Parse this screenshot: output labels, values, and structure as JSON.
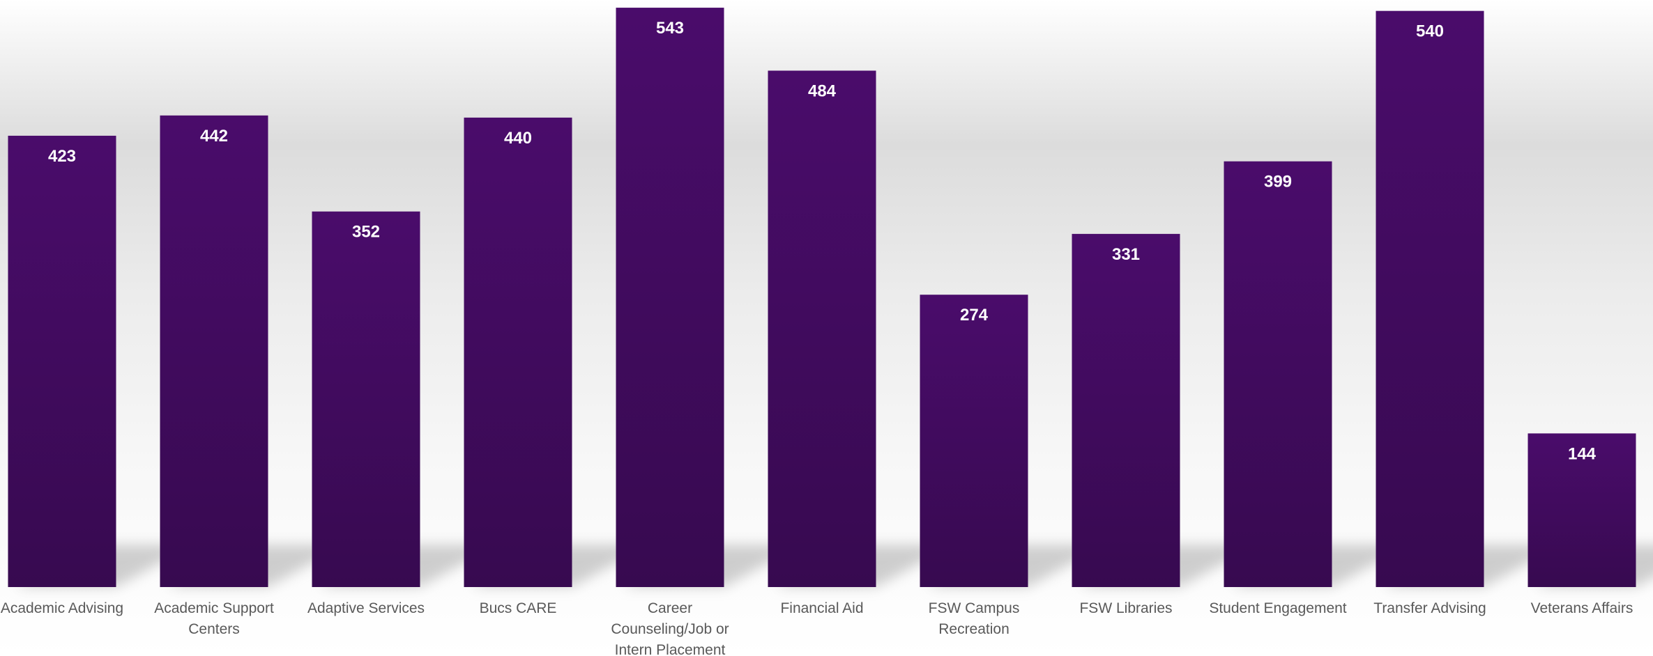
{
  "chart_data": {
    "type": "bar",
    "categories": [
      "Academic Advising",
      "Academic Support Centers",
      "Adaptive Services",
      "Bucs CARE",
      "Career Counseling/Job or Intern Placement",
      "Financial Aid",
      "FSW Campus Recreation",
      "FSW Libraries",
      "Student Engagement",
      "Transfer Advising",
      "Veterans Affairs"
    ],
    "category_lines": [
      [
        "Academic Advising"
      ],
      [
        "Academic Support",
        "Centers"
      ],
      [
        "Adaptive Services"
      ],
      [
        "Bucs CARE"
      ],
      [
        "Career",
        "Counseling/Job or",
        "Intern Placement"
      ],
      [
        "Financial Aid"
      ],
      [
        "FSW Campus",
        "Recreation"
      ],
      [
        "FSW Libraries"
      ],
      [
        "Student Engagement"
      ],
      [
        "Transfer Advising"
      ],
      [
        "Veterans Affairs"
      ]
    ],
    "values": [
      423,
      442,
      352,
      440,
      543,
      484,
      274,
      331,
      399,
      540,
      144
    ],
    "ylim": [
      0,
      545
    ],
    "grid": false,
    "legend": "none",
    "colors": {
      "bar_top": "#4a0c6b",
      "bar_bottom": "#370a50",
      "label": "#ffffff",
      "axis_text": "#595959"
    }
  }
}
